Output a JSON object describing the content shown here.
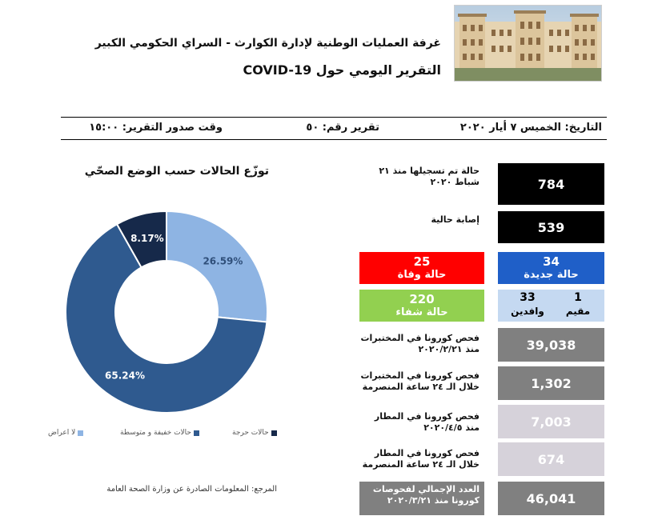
{
  "header": {
    "title_line1": "غرفة العمليات الوطنية لإدارة الكوارث - السراي الحكومي الكبير",
    "title_line2": "التقرير اليومي حول COVID-19"
  },
  "meta": {
    "date": "التاريخ: الخميس ٧ أيار ٢٠٢٠",
    "report_number": "تقرير رقم: ٥٠",
    "issue_time": "وقت صدور التقرير: ١٥:٠٠"
  },
  "chart_data": {
    "type": "pie",
    "title": "توزّع الحالات حسب الوضع الصحّي",
    "categories": [
      "لا اعراض",
      "حالات خفيفة و متوسطة",
      "حالات حرجة"
    ],
    "values": [
      26.59,
      65.24,
      8.17
    ],
    "labels": [
      "26.59%",
      "65.24%",
      "8.17%"
    ],
    "colors": [
      "#8eb4e3",
      "#2f5a8f",
      "#16294a"
    ],
    "legend_position": "bottom"
  },
  "stats": {
    "total_label": "حالة تم تسجيلها منذ ٢١ شباط ٢٠٢٠",
    "total_value": "784",
    "active_label": "إصابة حالية",
    "active_value": "539",
    "deaths_value": "25",
    "deaths_label": "حالة وفاة",
    "deaths_color": "#ff0000",
    "new_value": "34",
    "new_label": "حالة جديدة",
    "new_color": "#1f5fc8",
    "recovered_value": "220",
    "recovered_label": "حالة شفاء",
    "recovered_color": "#92d050",
    "resident_value": "1",
    "resident_label": "مقيم",
    "arrivals_value": "33",
    "arrivals_label": "وافدين",
    "split_color": "#c5d9f1",
    "lab_total_label": "فحص كورونا في المختبرات منذ ٢٠٢٠/٢/٢١",
    "lab_total_value": "39,038",
    "lab_24h_label": "فحص كورونا في المختبرات خلال الـ ٢٤ ساعة المنصرمة",
    "lab_24h_value": "1,302",
    "airport_total_label": "فحص كورونا في المطار منذ ٢٠٢٠/٤/٥",
    "airport_total_value": "7,003",
    "airport_24h_label": "فحص كورونا في المطار خلال الـ ٢٤ ساعة المنصرمة",
    "airport_24h_value": "674",
    "grand_total_label": "العدد الإجمالي لفحوصات كورونا منذ ٢٠٢٠/٣/٢١",
    "grand_total_value": "46,041"
  },
  "footer": {
    "source": "المرجع: المعلومات الصادرة عن وزارة الصحة العامة"
  }
}
